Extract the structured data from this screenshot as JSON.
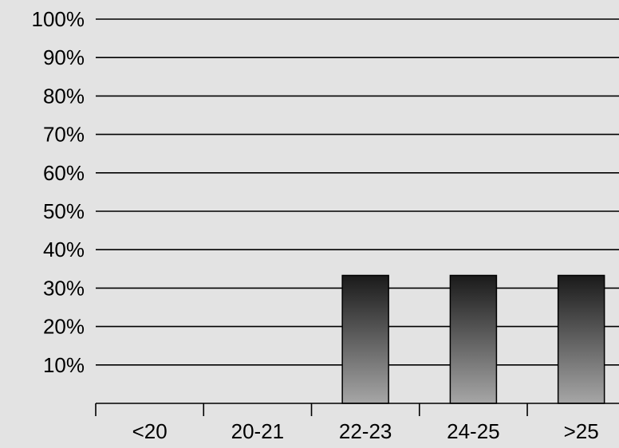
{
  "chart_data": {
    "type": "bar",
    "categories": [
      "<20",
      "20-21",
      "22-23",
      "24-25",
      ">25"
    ],
    "values": [
      0,
      0,
      33.3,
      33.3,
      33.3
    ],
    "y_ticks": [
      "10%",
      "20%",
      "30%",
      "40%",
      "50%",
      "60%",
      "70%",
      "80%",
      "90%",
      "100%"
    ],
    "ylim": [
      0,
      100
    ],
    "grid": true,
    "legend": "none",
    "colors": {
      "background": "#e3e3e3",
      "bar_top": "#1a1a1a",
      "bar_bottom": "#a6a6a6",
      "grid": "#000000"
    }
  }
}
